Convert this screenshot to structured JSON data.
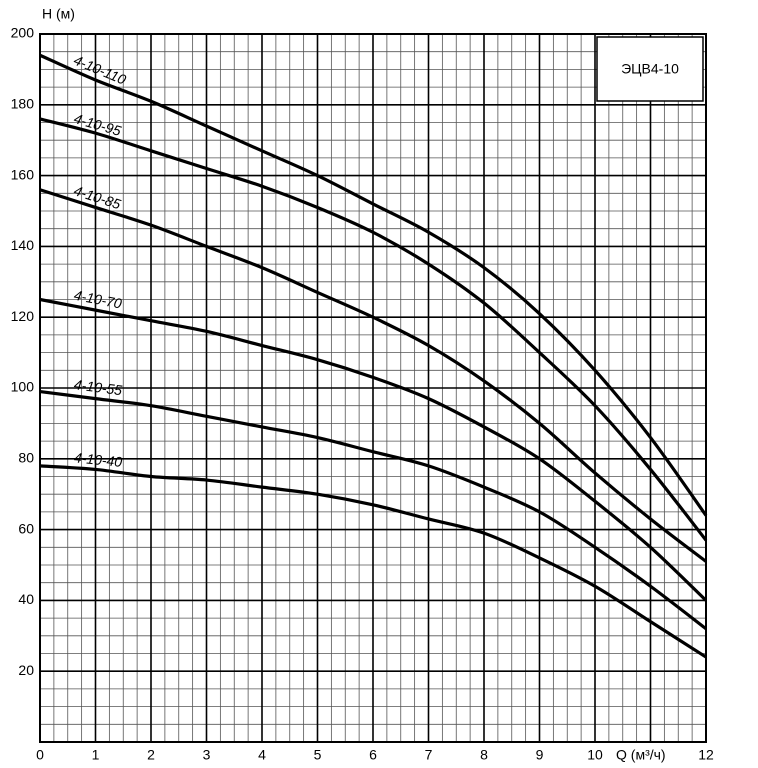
{
  "chart_data": {
    "type": "line",
    "title": "ЭЦВ4-10",
    "x_label": "Q (м³/ч)",
    "y_label": "H (м)",
    "x": [
      0,
      1,
      2,
      3,
      4,
      5,
      6,
      7,
      8,
      9,
      10,
      11,
      12
    ],
    "series": [
      {
        "name": "4-10-110",
        "color": "#000000",
        "values": [
          194,
          187,
          181,
          174,
          167,
          160,
          152,
          144,
          134,
          121,
          105,
          86,
          64
        ]
      },
      {
        "name": "4-10-95",
        "color": "#000000",
        "values": [
          176,
          172,
          167,
          162,
          157,
          151,
          144,
          135,
          124,
          110,
          95,
          77,
          57
        ]
      },
      {
        "name": "4-10-85",
        "color": "#000000",
        "values": [
          156,
          151,
          146,
          140,
          134,
          127,
          120,
          112,
          102,
          90,
          76,
          63,
          51
        ]
      },
      {
        "name": "4-10-70",
        "color": "#000000",
        "values": [
          125,
          122,
          119,
          116,
          112,
          108,
          103,
          97,
          89,
          80,
          68,
          55,
          40
        ]
      },
      {
        "name": "4-10-55",
        "color": "#000000",
        "values": [
          99,
          97,
          95,
          92,
          89,
          86,
          82,
          78,
          72,
          65,
          55,
          44,
          32
        ]
      },
      {
        "name": "4-10-40",
        "color": "#000000",
        "values": [
          78,
          77,
          75,
          74,
          72,
          70,
          67,
          63,
          59,
          52,
          44,
          34,
          24
        ]
      }
    ],
    "xlim": [
      0,
      12
    ],
    "xticks": [
      0,
      1,
      2,
      3,
      4,
      5,
      6,
      7,
      8,
      9,
      10,
      12
    ],
    "ylim": [
      0,
      200
    ],
    "yticks": [
      20,
      40,
      60,
      80,
      100,
      120,
      140,
      160,
      180,
      200
    ],
    "grid": true
  }
}
